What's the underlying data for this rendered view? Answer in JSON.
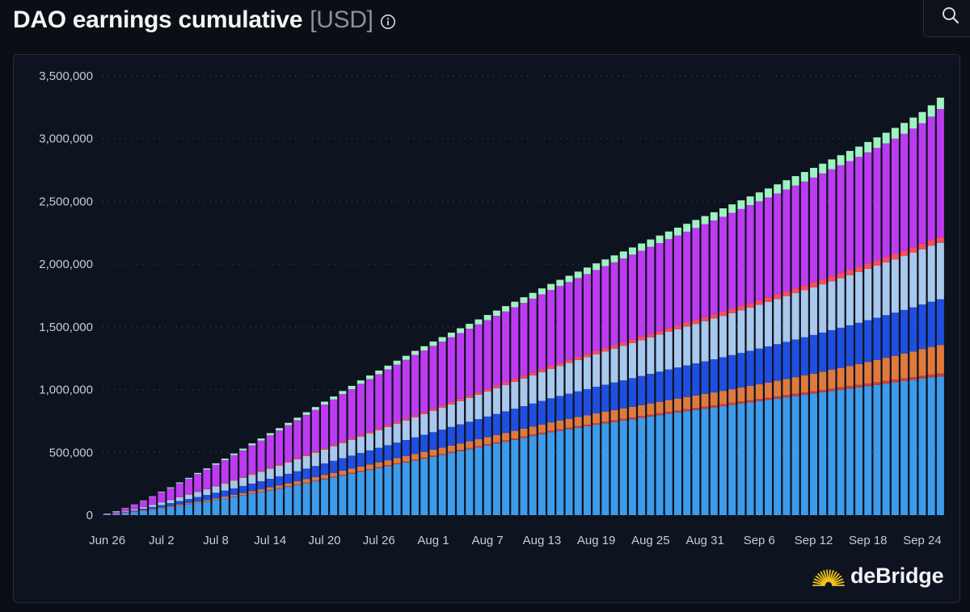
{
  "header": {
    "title": "DAO earnings cumulative",
    "unit": "[USD]",
    "info_icon": "info-icon",
    "search_icon": "search-icon"
  },
  "brand": {
    "name": "deBridge",
    "logo_icon": "sunburst-logo-icon"
  },
  "colors": {
    "background": "#0b0e15",
    "panel": "#0e1320",
    "series": [
      "#3d9be9",
      "#d13b3b",
      "#e07a3c",
      "#1f4fe0",
      "#a8c8ec",
      "#ff4d5a",
      "#bc3bf0",
      "#9ef3c0"
    ]
  },
  "chart_data": {
    "type": "bar",
    "stacked": true,
    "title": "DAO earnings cumulative",
    "ylabel": "USD",
    "ylim": [
      0,
      3500000
    ],
    "yticks": [
      0,
      500000,
      1000000,
      1500000,
      2000000,
      2500000,
      3000000,
      3500000
    ],
    "ytick_labels": [
      "0",
      "500,000",
      "1,000,000",
      "1,500,000",
      "2,000,000",
      "2,500,000",
      "3,000,000",
      "3,500,000"
    ],
    "grid": "horizontal-dotted",
    "xtick_labels": [
      "Jun 26",
      "Jul 2",
      "Jul 8",
      "Jul 14",
      "Jul 20",
      "Jul 26",
      "Aug 1",
      "Aug 7",
      "Aug 13",
      "Aug 19",
      "Aug 25",
      "Aug 31",
      "Sep 6",
      "Sep 12",
      "Sep 18",
      "Sep 24"
    ],
    "categories": [
      "Jun 26",
      "Jun 27",
      "Jun 28",
      "Jun 29",
      "Jun 30",
      "Jul 1",
      "Jul 2",
      "Jul 3",
      "Jul 4",
      "Jul 5",
      "Jul 6",
      "Jul 7",
      "Jul 8",
      "Jul 9",
      "Jul 10",
      "Jul 11",
      "Jul 12",
      "Jul 13",
      "Jul 14",
      "Jul 15",
      "Jul 16",
      "Jul 17",
      "Jul 18",
      "Jul 19",
      "Jul 20",
      "Jul 21",
      "Jul 22",
      "Jul 23",
      "Jul 24",
      "Jul 25",
      "Jul 26",
      "Jul 27",
      "Jul 28",
      "Jul 29",
      "Jul 30",
      "Jul 31",
      "Aug 1",
      "Aug 2",
      "Aug 3",
      "Aug 4",
      "Aug 5",
      "Aug 6",
      "Aug 7",
      "Aug 8",
      "Aug 9",
      "Aug 10",
      "Aug 11",
      "Aug 12",
      "Aug 13",
      "Aug 14",
      "Aug 15",
      "Aug 16",
      "Aug 17",
      "Aug 18",
      "Aug 19",
      "Aug 20",
      "Aug 21",
      "Aug 22",
      "Aug 23",
      "Aug 24",
      "Aug 25",
      "Aug 26",
      "Aug 27",
      "Aug 28",
      "Aug 29",
      "Aug 30",
      "Aug 31",
      "Sep 1",
      "Sep 2",
      "Sep 3",
      "Sep 4",
      "Sep 5",
      "Sep 6",
      "Sep 7",
      "Sep 8",
      "Sep 9",
      "Sep 10",
      "Sep 11",
      "Sep 12",
      "Sep 13",
      "Sep 14",
      "Sep 15",
      "Sep 16",
      "Sep 17",
      "Sep 18",
      "Sep 19",
      "Sep 20",
      "Sep 21",
      "Sep 22",
      "Sep 23",
      "Sep 24",
      "Sep 25",
      "Sep 26"
    ],
    "series": [
      {
        "color": "#3d9be9",
        "values": [
          5000,
          11000,
          18000,
          26000,
          35000,
          44000,
          54000,
          64000,
          75000,
          86000,
          97000,
          108000,
          120000,
          132000,
          144000,
          157000,
          170000,
          183000,
          197000,
          211000,
          225000,
          240000,
          255000,
          270000,
          285000,
          300000,
          315000,
          330000,
          345000,
          360000,
          375000,
          390000,
          405000,
          420000,
          435000,
          450000,
          465000,
          480000,
          495000,
          510000,
          525000,
          540000,
          555000,
          570000,
          585000,
          600000,
          615000,
          630000,
          645000,
          660000,
          672000,
          684000,
          696000,
          708000,
          720000,
          731000,
          742000,
          753000,
          764000,
          775000,
          786000,
          797000,
          808000,
          818000,
          828000,
          838000,
          848000,
          858000,
          868000,
          878000,
          888000,
          898000,
          908000,
          918000,
          928000,
          938000,
          948000,
          958000,
          968000,
          978000,
          988000,
          998000,
          1008000,
          1018000,
          1028000,
          1038000,
          1048000,
          1058000,
          1068000,
          1078000,
          1088000,
          1098000,
          1105000
        ]
      },
      {
        "color": "#d13b3b",
        "values": [
          0,
          0,
          500,
          500,
          1000,
          1000,
          1500,
          1500,
          2000,
          2000,
          2500,
          2500,
          3000,
          3000,
          3500,
          3500,
          4000,
          4000,
          4500,
          4500,
          5000,
          5000,
          5500,
          5500,
          6000,
          6000,
          6500,
          6500,
          7000,
          7000,
          7500,
          7500,
          8000,
          8000,
          8500,
          8500,
          9000,
          9000,
          9500,
          9500,
          10000,
          10000,
          10500,
          10500,
          11000,
          11000,
          11500,
          11500,
          12000,
          12000,
          12500,
          12500,
          13000,
          13000,
          13500,
          13500,
          14000,
          14000,
          14500,
          14500,
          15000,
          15000,
          15500,
          15500,
          16000,
          16000,
          16500,
          16500,
          17000,
          17000,
          17500,
          17500,
          18000,
          18000,
          18500,
          18500,
          19000,
          19000,
          19500,
          19500,
          20000,
          20000,
          20500,
          20500,
          21000,
          21000,
          21500,
          21500,
          22000,
          22000,
          22500,
          22500,
          23000
        ]
      },
      {
        "color": "#e07a3c",
        "values": [
          0,
          500,
          1000,
          2000,
          3000,
          4000,
          5000,
          6000,
          7000,
          8000,
          9000,
          10000,
          11000,
          12500,
          14000,
          15500,
          17000,
          18500,
          20000,
          21500,
          23000,
          24500,
          26000,
          27500,
          29000,
          30500,
          32000,
          33500,
          35000,
          36500,
          38000,
          39500,
          41000,
          42500,
          44000,
          45500,
          47000,
          48500,
          50000,
          51500,
          53000,
          54500,
          56000,
          57500,
          59000,
          60500,
          62000,
          63500,
          65000,
          67000,
          69000,
          71000,
          73000,
          75000,
          77000,
          79000,
          81000,
          83000,
          85000,
          87000,
          89000,
          91000,
          93000,
          95000,
          97000,
          99000,
          101000,
          103000,
          105000,
          108000,
          111000,
          114000,
          117000,
          120000,
          124000,
          128000,
          132000,
          136000,
          140000,
          145000,
          150000,
          155000,
          160000,
          166000,
          172000,
          178000,
          184000,
          190000,
          197000,
          204000,
          212000,
          220000,
          228000
        ]
      },
      {
        "color": "#1f4fe0",
        "values": [
          1000,
          3000,
          5000,
          8000,
          12000,
          16000,
          20000,
          24000,
          28000,
          32000,
          36000,
          40000,
          44000,
          48000,
          52000,
          56000,
          60000,
          64000,
          68000,
          72000,
          76000,
          80000,
          84000,
          88000,
          92000,
          96000,
          100000,
          104000,
          108000,
          112000,
          116000,
          120000,
          124000,
          128000,
          132000,
          136000,
          140000,
          144000,
          148000,
          152000,
          156000,
          160000,
          164000,
          168000,
          172000,
          176000,
          180000,
          184000,
          188000,
          192000,
          196000,
          200000,
          204000,
          208000,
          212000,
          216000,
          220000,
          224000,
          228000,
          232000,
          236000,
          240000,
          244000,
          248000,
          252000,
          256000,
          260000,
          264000,
          268000,
          272000,
          276000,
          280000,
          284000,
          288000,
          292000,
          296000,
          300000,
          304000,
          308000,
          312000,
          316000,
          320000,
          324000,
          328000,
          332000,
          336000,
          340000,
          344000,
          348000,
          352000,
          356000,
          360000,
          364000
        ]
      },
      {
        "color": "#a8c8ec",
        "values": [
          2000,
          4000,
          7000,
          10000,
          13000,
          17000,
          21000,
          25000,
          30000,
          35000,
          40000,
          45000,
          50000,
          55000,
          60000,
          65000,
          70000,
          75000,
          80000,
          85000,
          90000,
          95000,
          100000,
          105000,
          110000,
          115000,
          120000,
          125000,
          130000,
          135000,
          140000,
          145000,
          150000,
          155000,
          160000,
          165000,
          170000,
          175000,
          180000,
          185000,
          190000,
          195000,
          200000,
          205000,
          210000,
          215000,
          220000,
          225000,
          230000,
          235000,
          240000,
          245000,
          250000,
          255000,
          260000,
          265000,
          270000,
          275000,
          280000,
          285000,
          290000,
          295000,
          300000,
          305000,
          310000,
          315000,
          320000,
          325000,
          330000,
          335000,
          340000,
          345000,
          350000,
          355000,
          360000,
          365000,
          370000,
          375000,
          380000,
          385000,
          390000,
          395000,
          400000,
          405000,
          410000,
          415000,
          420000,
          425000,
          430000,
          435000,
          440000,
          445000,
          450000
        ]
      },
      {
        "color": "#ff4d5a",
        "values": [
          0,
          500,
          800,
          1000,
          1500,
          2000,
          2500,
          3000,
          3500,
          4000,
          4500,
          5000,
          5500,
          6000,
          6500,
          7000,
          7500,
          8000,
          8500,
          9000,
          9500,
          10000,
          10500,
          11000,
          11500,
          12000,
          12500,
          13000,
          13500,
          14000,
          14500,
          15000,
          15500,
          16000,
          16500,
          17000,
          17500,
          18000,
          18500,
          19000,
          19500,
          20000,
          20500,
          21000,
          21500,
          22000,
          22500,
          23000,
          23500,
          24000,
          24500,
          25000,
          25500,
          26000,
          26500,
          27000,
          27500,
          28000,
          28500,
          29000,
          29500,
          30000,
          30500,
          31000,
          31500,
          32000,
          32500,
          33000,
          33500,
          34000,
          34500,
          35000,
          35500,
          36000,
          36500,
          37000,
          37500,
          38000,
          38500,
          39000,
          39500,
          40000,
          40500,
          41000,
          41500,
          42000,
          42500,
          43000,
          43500,
          44000,
          44500,
          45000,
          45500
        ]
      },
      {
        "color": "#bc3bf0",
        "values": [
          3000,
          12000,
          22000,
          35000,
          48000,
          62000,
          78000,
          92000,
          108000,
          122000,
          138000,
          152000,
          168000,
          182000,
          198000,
          212000,
          228000,
          242000,
          258000,
          272000,
          288000,
          302000,
          318000,
          332000,
          348000,
          362000,
          378000,
          392000,
          408000,
          420000,
          432000,
          444000,
          456000,
          468000,
          480000,
          490000,
          500000,
          508000,
          516000,
          524000,
          532000,
          540000,
          548000,
          556000,
          564000,
          572000,
          580000,
          588000,
          596000,
          604000,
          612000,
          620000,
          628000,
          636000,
          644000,
          652000,
          660000,
          668000,
          676000,
          684000,
          692000,
          700000,
          708000,
          716000,
          724000,
          732000,
          740000,
          748000,
          756000,
          764000,
          772000,
          780000,
          788000,
          796000,
          804000,
          812000,
          820000,
          828000,
          836000,
          844000,
          852000,
          860000,
          868000,
          876000,
          886000,
          896000,
          906000,
          918000,
          930000,
          945000,
          960000,
          985000,
          1020000
        ]
      },
      {
        "color": "#9ef3c0",
        "values": [
          500,
          1000,
          1500,
          2000,
          3000,
          4000,
          5000,
          6000,
          7000,
          8000,
          9000,
          10000,
          11000,
          12000,
          13000,
          14000,
          15000,
          16000,
          17000,
          18000,
          19000,
          20000,
          21000,
          22000,
          23000,
          24000,
          25000,
          26000,
          27000,
          28000,
          29000,
          30000,
          31000,
          32000,
          33000,
          34000,
          35000,
          36000,
          37000,
          38000,
          39000,
          40000,
          41000,
          42000,
          43000,
          44000,
          45000,
          46000,
          47000,
          48000,
          49000,
          50000,
          51000,
          52000,
          53000,
          54000,
          55000,
          56000,
          57000,
          58000,
          59000,
          60000,
          61000,
          62000,
          63000,
          64000,
          65000,
          66000,
          67000,
          68000,
          69000,
          70000,
          71000,
          72000,
          73000,
          74000,
          75000,
          76000,
          77000,
          78000,
          79000,
          80000,
          81000,
          82000,
          83000,
          84000,
          85000,
          86000,
          87000,
          88000,
          89000,
          90000,
          91000
        ]
      }
    ]
  }
}
